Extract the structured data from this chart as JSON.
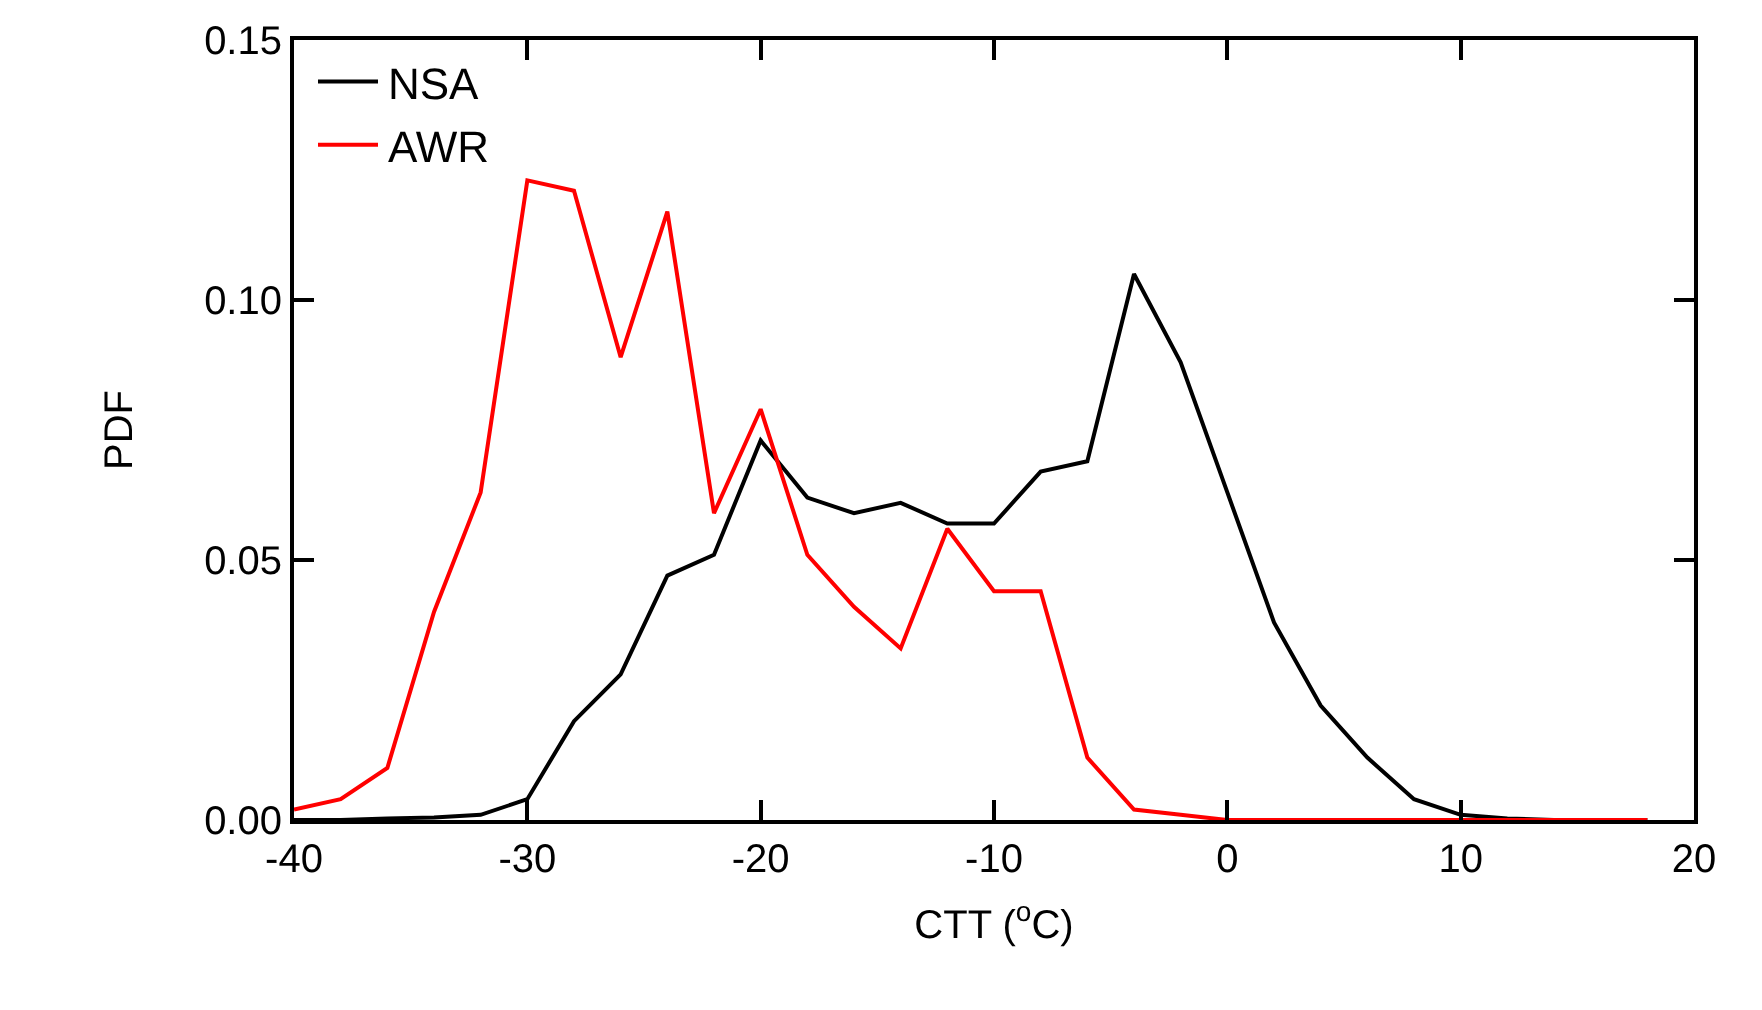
{
  "chart_data": {
    "type": "line",
    "xlabel": "CTT ($^{o}$C)",
    "ylabel": "PDF",
    "x": [
      -40,
      -38,
      -36,
      -34,
      -32,
      -30,
      -28,
      -26,
      -24,
      -22,
      -20,
      -18,
      -16,
      -14,
      -12,
      -10,
      -8,
      -6,
      -4,
      -2,
      0,
      2,
      4,
      6,
      8,
      10,
      12,
      14,
      16,
      18
    ],
    "series": [
      {
        "name": "NSA",
        "color": "#000000",
        "values": [
          0,
          0,
          0.0003,
          0.0005,
          0.001,
          0.004,
          0.019,
          0.028,
          0.047,
          0.051,
          0.073,
          0.062,
          0.059,
          0.061,
          0.057,
          0.057,
          0.067,
          0.069,
          0.105,
          0.088,
          0.063,
          0.038,
          0.022,
          0.012,
          0.004,
          0.001,
          0.0003,
          0,
          0,
          0
        ]
      },
      {
        "name": "AWR",
        "color": "#ff0000",
        "values": [
          0.002,
          0.004,
          0.01,
          0.04,
          0.063,
          0.123,
          0.121,
          0.089,
          0.117,
          0.059,
          0.079,
          0.051,
          0.041,
          0.033,
          0.056,
          0.044,
          0.044,
          0.012,
          0.002,
          0.001,
          0,
          0,
          0,
          0,
          0,
          0,
          0,
          0,
          0,
          0
        ]
      }
    ],
    "xlim": [
      -40,
      20
    ],
    "xticks": [
      -40,
      -30,
      -20,
      -10,
      0,
      10,
      20
    ],
    "ylim": [
      0,
      0.15
    ],
    "yticks": [
      {
        "value": 0,
        "label": "0.00"
      },
      {
        "value": 0.05,
        "label": "0.05"
      },
      {
        "value": 0.1,
        "label": "0.10"
      },
      {
        "value": 0.15,
        "label": "0.15"
      }
    ],
    "legend": "top left",
    "marker": "none",
    "line_style": "solid"
  }
}
